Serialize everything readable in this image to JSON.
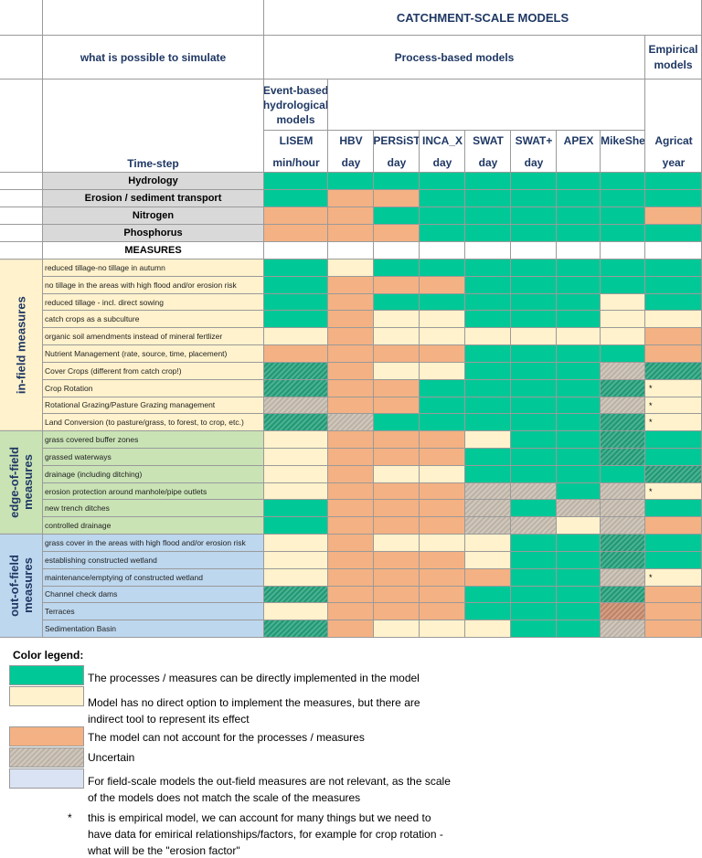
{
  "header": {
    "title": "CATCHMENT-SCALE MODELS",
    "left_label": "what is possible to simulate",
    "process_based": "Process-based models",
    "empirical": "Empirical models",
    "event_based": "Event-based hydrological models",
    "timestep_label": "Time-step"
  },
  "models": [
    {
      "name": "LISEM",
      "timestep": "min/hour"
    },
    {
      "name": "HBV",
      "timestep": "day"
    },
    {
      "name": "PERSiST",
      "timestep": "day"
    },
    {
      "name": "INCA_X",
      "timestep": "day"
    },
    {
      "name": "SWAT",
      "timestep": "day"
    },
    {
      "name": "SWAT+",
      "timestep": "day"
    },
    {
      "name": "APEX"
    },
    {
      "name": "MikeShe"
    },
    {
      "name": "Agricat",
      "timestep": "year"
    }
  ],
  "processes": [
    {
      "label": "Hydrology",
      "cells": [
        "#00c896",
        "#00c896",
        "#00c896",
        "#00c896",
        "#00c896",
        "#00c896",
        "#00c896",
        "#00c896",
        "#00c896"
      ]
    },
    {
      "label": "Erosion / sediment transport",
      "cells": [
        "#00c896",
        "#f4b183",
        "#f4b183",
        "#00c896",
        "#00c896",
        "#00c896",
        "#00c896",
        "#00c896",
        "#00c896"
      ]
    },
    {
      "label": "Nitrogen",
      "cells": [
        "#f4b183",
        "#f4b183",
        "#00c896",
        "#00c896",
        "#00c896",
        "#00c896",
        "#00c896",
        "#00c896",
        "#f4b183"
      ]
    },
    {
      "label": "Phosphorus",
      "cells": [
        "#f4b183",
        "#f4b183",
        "#f4b183",
        "#00c896",
        "#00c896",
        "#00c896",
        "#00c896",
        "#00c896",
        "#00c896"
      ]
    }
  ],
  "measures_label": "MEASURES",
  "groups": [
    {
      "label": "in-field measures",
      "color": "#fff2cc",
      "rows": [
        {
          "label": "reduced tillage-no tillage in autumn",
          "cells": [
            "#00c896",
            "#fff2cc",
            "#00c896",
            "#00c896",
            "#00c896",
            "#00c896",
            "#00c896",
            "#00c896",
            "#00c896"
          ]
        },
        {
          "label": "no tillage in the areas with high flood and/or erosion risk",
          "cells": [
            "#00c896",
            "#f4b183",
            "#f4b183",
            "#f4b183",
            "#00c896",
            "#00c896",
            "#00c896",
            "#00c896",
            "#00c896"
          ]
        },
        {
          "label": "reduced tillage - incl. direct sowing",
          "cells": [
            "#00c896",
            "#f4b183",
            "#00c896",
            "#00c896",
            "#00c896",
            "#00c896",
            "#00c896",
            "#fff2cc",
            "#00c896"
          ]
        },
        {
          "label": "catch crops as a subculture",
          "cells": [
            "#00c896",
            "#f4b183",
            "#fff2cc",
            "#fff2cc",
            "#00c896",
            "#00c896",
            "#00c896",
            "#fff2cc",
            "#fff2cc"
          ]
        },
        {
          "label": "organic soil amendments instead of mineral fertlizer",
          "cells": [
            "#fff2cc",
            "#f4b183",
            "#fff2cc",
            "#fff2cc",
            "#fff2cc",
            "#fff2cc",
            "#fff2cc",
            "#fff2cc",
            "#f4b183"
          ]
        },
        {
          "label": "Nutrient Management (rate, source, time, placement)",
          "cells": [
            "#f4b183",
            "#f4b183",
            "#f4b183",
            "#f4b183",
            "#00c896",
            "#00c896",
            "#00c896",
            "#00c896",
            "#f4b183"
          ]
        },
        {
          "label": "Cover Crops (different from catch crop!)",
          "cells": [
            "#23a07a",
            "#f4b183",
            "#fff2cc",
            "#fff2cc",
            "#00c896",
            "#00c896",
            "#00c896",
            "#c6bcae",
            "#23a07a"
          ]
        },
        {
          "label": "Crop Rotation",
          "cells": [
            "#23a07a",
            "#f4b183",
            "#f4b183",
            "#00c896",
            "#00c896",
            "#00c896",
            "#00c896",
            "#23a07a",
            {
              "color": "#fff2cc",
              "text": "*"
            }
          ]
        },
        {
          "label": "Rotational Grazing/Pasture Grazing management",
          "cells": [
            "#c6bcae",
            "#f4b183",
            "#f4b183",
            "#00c896",
            "#00c896",
            "#00c896",
            "#00c896",
            "#c6bcae",
            {
              "color": "#fff2cc",
              "text": "*"
            }
          ]
        },
        {
          "label": "Land Conversion (to pasture/grass, to forest, to crop, etc.)",
          "cells": [
            "#23a07a",
            "#c6bcae",
            "#00c896",
            "#00c896",
            "#00c896",
            "#00c896",
            "#00c896",
            "#23a07a",
            {
              "color": "#fff2cc",
              "text": "*"
            }
          ]
        }
      ]
    },
    {
      "label": "edge-of-field measures",
      "color": "#c9e3b5",
      "rows": [
        {
          "label": "grass covered buffer zones",
          "cells": [
            "#fff2cc",
            "#f4b183",
            "#f4b183",
            "#f4b183",
            "#fff2cc",
            "#00c896",
            "#00c896",
            "#23a07a",
            "#00c896"
          ]
        },
        {
          "label": "grassed waterways",
          "cells": [
            "#fff2cc",
            "#f4b183",
            "#f4b183",
            "#f4b183",
            "#00c896",
            "#00c896",
            "#00c896",
            "#23a07a",
            "#00c896"
          ]
        },
        {
          "label": "drainage (including ditching)",
          "cells": [
            "#fff2cc",
            "#f4b183",
            "#fff2cc",
            "#fff2cc",
            "#00c896",
            "#00c896",
            "#00c896",
            "#00c896",
            "#23a07a"
          ]
        },
        {
          "label": "erosion protection around manhole/pipe outlets",
          "cells": [
            "#fff2cc",
            "#f4b183",
            "#f4b183",
            "#f4b183",
            "#c6bcae",
            "#c6bcae",
            "#00c896",
            "#c6bcae",
            {
              "color": "#fff2cc",
              "text": "*"
            }
          ]
        },
        {
          "label": "new trench ditches",
          "cells": [
            "#00c896",
            "#f4b183",
            "#f4b183",
            "#f4b183",
            "#c6bcae",
            "#00c896",
            "#c6bcae",
            "#c6bcae",
            "#00c896"
          ]
        },
        {
          "label": "controlled drainage",
          "cells": [
            "#00c896",
            "#f4b183",
            "#f4b183",
            "#f4b183",
            "#c6bcae",
            "#c6bcae",
            "#fff2cc",
            "#c6bcae",
            "#f4b183"
          ]
        }
      ]
    },
    {
      "label": "out-of-field measures",
      "color": "#bdd7ee",
      "rows": [
        {
          "label": "grass cover in the areas with high flood and/or erosion risk",
          "cells": [
            "#fff2cc",
            "#f4b183",
            "#fff2cc",
            "#fff2cc",
            "#fff2cc",
            "#00c896",
            "#00c896",
            "#23a07a",
            "#00c896"
          ]
        },
        {
          "label": "establishing constructed wetland",
          "cells": [
            "#fff2cc",
            "#f4b183",
            "#f4b183",
            "#f4b183",
            "#fff2cc",
            "#00c896",
            "#00c896",
            "#23a07a",
            "#00c896"
          ]
        },
        {
          "label": "maintenance/emptying of constructed wetland",
          "cells": [
            "#fff2cc",
            "#f4b183",
            "#f4b183",
            "#f4b183",
            "#f4b183",
            "#00c896",
            "#00c896",
            "#c6bcae",
            {
              "color": "#fff2cc",
              "text": "*"
            }
          ]
        },
        {
          "label": "Channel check dams",
          "cells": [
            "#23a07a",
            "#f4b183",
            "#f4b183",
            "#f4b183",
            "#00c896",
            "#00c896",
            "#00c896",
            "#23a07a",
            "#f4b183"
          ]
        },
        {
          "label": "Terraces",
          "cells": [
            "#fff2cc",
            "#f4b183",
            "#f4b183",
            "#f4b183",
            "#00c896",
            "#00c896",
            "#00c896",
            "#c98a6c",
            "#f4b183"
          ]
        },
        {
          "label": "Sedimentation Basin",
          "cells": [
            "#23a07a",
            "#f4b183",
            "#fff2cc",
            "#fff2cc",
            "#fff2cc",
            "#00c896",
            "#00c896",
            "#c6bcae",
            "#f4b183"
          ]
        }
      ]
    }
  ],
  "legend": {
    "title": "Color legend:",
    "items": [
      {
        "color": "#00c896",
        "text": "The processes /  measures can be directly implemented in the model"
      },
      {
        "color": "#fff2cc",
        "text": "Model has no direct option to implement the measures, but there are indirect tool to represent its effect"
      },
      {
        "color": "#f4b183",
        "text": "The model can not account for the processes / measures"
      },
      {
        "color": "#c6bcae",
        "text": "Uncertain"
      },
      {
        "color": "#dae3f3",
        "text": "For field-scale models the out-field measures are not relevant, as the scale of the models does not match the scale of the measures"
      }
    ],
    "note": {
      "symbol": "*",
      "text": "this is empirical model, we can account for many things but we need to have data for emirical relationships/factors, for example for crop rotation - what will be the \"erosion factor\""
    }
  }
}
